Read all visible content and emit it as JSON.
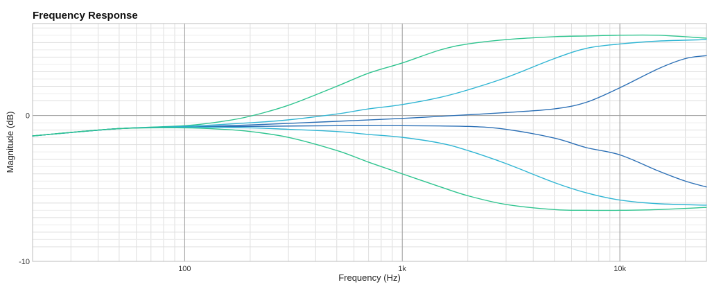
{
  "chart_data": {
    "type": "line",
    "title": "Frequency Response",
    "xlabel": "Frequency (Hz)",
    "ylabel": "Magnitude (dB)",
    "x_scale": "log",
    "xlim": [
      20,
      25000
    ],
    "ylim": [
      -10,
      6.3
    ],
    "x_ticks": [
      {
        "value": 100,
        "label": "100"
      },
      {
        "value": 1000,
        "label": "1k"
      },
      {
        "value": 10000,
        "label": "10k"
      }
    ],
    "y_ticks": [
      {
        "value": 0,
        "label": "0"
      },
      {
        "value": -10,
        "label": "-10"
      }
    ],
    "grid": true,
    "legend": "none",
    "series": [
      {
        "color": "#2fc48f",
        "x": [
          20,
          50,
          100,
          150,
          200,
          300,
          500,
          700,
          1000,
          1500,
          2000,
          3000,
          5000,
          7000,
          10000,
          15000,
          25000
        ],
        "y": [
          -1.4,
          -0.9,
          -0.7,
          -0.4,
          -0.05,
          0.7,
          2.0,
          2.9,
          3.6,
          4.5,
          4.9,
          5.2,
          5.4,
          5.45,
          5.5,
          5.5,
          5.3
        ]
      },
      {
        "color": "#2fb5d3",
        "x": [
          20,
          50,
          100,
          200,
          300,
          500,
          700,
          1000,
          1500,
          2000,
          3000,
          5000,
          7000,
          10000,
          15000,
          25000
        ],
        "y": [
          -1.4,
          -0.9,
          -0.75,
          -0.5,
          -0.3,
          0.1,
          0.45,
          0.75,
          1.25,
          1.75,
          2.6,
          3.9,
          4.6,
          4.9,
          5.1,
          5.2
        ]
      },
      {
        "color": "#2b6fb5",
        "x": [
          20,
          50,
          100,
          200,
          500,
          1000,
          2000,
          3000,
          5000,
          7000,
          10000,
          15000,
          20000,
          25000
        ],
        "y": [
          -1.4,
          -0.9,
          -0.8,
          -0.65,
          -0.4,
          -0.2,
          0.05,
          0.2,
          0.45,
          0.9,
          1.9,
          3.2,
          3.9,
          4.1
        ]
      },
      {
        "color": "#2b6fb5",
        "x": [
          20,
          50,
          100,
          200,
          500,
          1000,
          2000,
          3000,
          5000,
          7000,
          10000,
          15000,
          20000,
          25000
        ],
        "y": [
          -1.4,
          -0.9,
          -0.8,
          -0.75,
          -0.7,
          -0.7,
          -0.75,
          -0.95,
          -1.55,
          -2.2,
          -2.7,
          -3.8,
          -4.5,
          -4.9
        ]
      },
      {
        "color": "#2fb5d3",
        "x": [
          20,
          50,
          100,
          200,
          300,
          500,
          700,
          1000,
          1500,
          2000,
          3000,
          5000,
          7000,
          10000,
          15000,
          25000
        ],
        "y": [
          -1.4,
          -0.9,
          -0.8,
          -0.85,
          -0.95,
          -1.1,
          -1.3,
          -1.5,
          -1.9,
          -2.4,
          -3.3,
          -4.6,
          -5.3,
          -5.8,
          -6.05,
          -6.15
        ]
      },
      {
        "color": "#2fc48f",
        "x": [
          20,
          50,
          100,
          150,
          200,
          300,
          500,
          700,
          1000,
          1500,
          2000,
          3000,
          5000,
          7000,
          10000,
          15000,
          25000
        ],
        "y": [
          -1.4,
          -0.9,
          -0.85,
          -0.95,
          -1.1,
          -1.5,
          -2.4,
          -3.2,
          -4.0,
          -4.9,
          -5.5,
          -6.1,
          -6.45,
          -6.5,
          -6.5,
          -6.45,
          -6.3
        ]
      }
    ]
  }
}
